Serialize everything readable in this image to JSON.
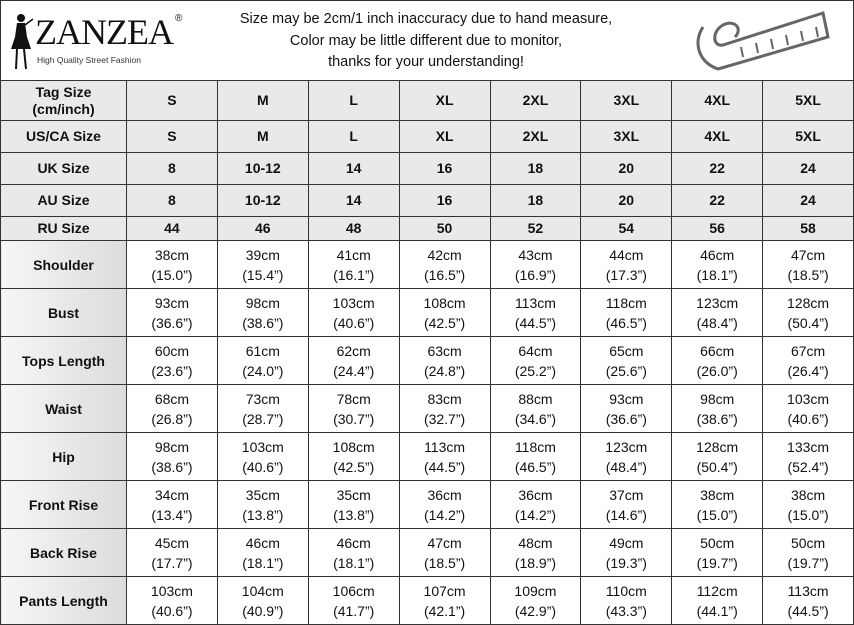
{
  "header": {
    "logo_brand": "ZANZEA",
    "logo_tagline": "High Quality Street Fashion",
    "notice_lines": [
      "Size may be 2cm/1 inch inaccuracy due to hand measure,",
      "Color may be little different due to monitor,",
      "thanks for your understanding!"
    ],
    "icon": "measuring-tape-icon"
  },
  "size_rows": [
    {
      "label": "Tag Size\n(cm/inch)",
      "values": [
        "S",
        "M",
        "L",
        "XL",
        "2XL",
        "3XL",
        "4XL",
        "5XL"
      ]
    },
    {
      "label": "US/CA Size",
      "values": [
        "S",
        "M",
        "L",
        "XL",
        "2XL",
        "3XL",
        "4XL",
        "5XL"
      ]
    },
    {
      "label": "UK Size",
      "values": [
        "8",
        "10-12",
        "14",
        "16",
        "18",
        "20",
        "22",
        "24"
      ]
    },
    {
      "label": "AU Size",
      "values": [
        "8",
        "10-12",
        "14",
        "16",
        "18",
        "20",
        "22",
        "24"
      ]
    },
    {
      "label": "RU Size",
      "values": [
        "44",
        "46",
        "48",
        "50",
        "52",
        "54",
        "56",
        "58"
      ]
    }
  ],
  "measure_rows": [
    {
      "label": "Shoulder",
      "cm": [
        "38cm",
        "39cm",
        "41cm",
        "42cm",
        "43cm",
        "44cm",
        "46cm",
        "47cm"
      ],
      "inch": [
        "(15.0”)",
        "(15.4”)",
        "(16.1”)",
        "(16.5”)",
        "(16.9”)",
        "(17.3”)",
        "(18.1”)",
        "(18.5”)"
      ]
    },
    {
      "label": "Bust",
      "cm": [
        "93cm",
        "98cm",
        "103cm",
        "108cm",
        "113cm",
        "118cm",
        "123cm",
        "128cm"
      ],
      "inch": [
        "(36.6”)",
        "(38.6”)",
        "(40.6”)",
        "(42.5”)",
        "(44.5”)",
        "(46.5”)",
        "(48.4”)",
        "(50.4”)"
      ]
    },
    {
      "label": "Tops Length",
      "cm": [
        "60cm",
        "61cm",
        "62cm",
        "63cm",
        "64cm",
        "65cm",
        "66cm",
        "67cm"
      ],
      "inch": [
        "(23.6”)",
        "(24.0”)",
        "(24.4”)",
        "(24.8”)",
        "(25.2”)",
        "(25.6”)",
        "(26.0”)",
        "(26.4”)"
      ]
    },
    {
      "label": "Waist",
      "cm": [
        "68cm",
        "73cm",
        "78cm",
        "83cm",
        "88cm",
        "93cm",
        "98cm",
        "103cm"
      ],
      "inch": [
        "(26.8”)",
        "(28.7”)",
        "(30.7”)",
        "(32.7”)",
        "(34.6”)",
        "(36.6”)",
        "(38.6”)",
        "(40.6”)"
      ]
    },
    {
      "label": "Hip",
      "cm": [
        "98cm",
        "103cm",
        "108cm",
        "113cm",
        "118cm",
        "123cm",
        "128cm",
        "133cm"
      ],
      "inch": [
        "(38.6”)",
        "(40.6”)",
        "(42.5”)",
        "(44.5”)",
        "(46.5”)",
        "(48.4”)",
        "(50.4”)",
        "(52.4”)"
      ]
    },
    {
      "label": "Front Rise",
      "cm": [
        "34cm",
        "35cm",
        "35cm",
        "36cm",
        "36cm",
        "37cm",
        "38cm",
        "38cm"
      ],
      "inch": [
        "(13.4”)",
        "(13.8”)",
        "(13.8”)",
        "(14.2”)",
        "(14.2”)",
        "(14.6”)",
        "(15.0”)",
        "(15.0”)"
      ]
    },
    {
      "label": "Back Rise",
      "cm": [
        "45cm",
        "46cm",
        "46cm",
        "47cm",
        "48cm",
        "49cm",
        "50cm",
        "50cm"
      ],
      "inch": [
        "(17.7”)",
        "(18.1”)",
        "(18.1”)",
        "(18.5”)",
        "(18.9”)",
        "(19.3”)",
        "(19.7”)",
        "(19.7”)"
      ]
    },
    {
      "label": "Pants Length",
      "cm": [
        "103cm",
        "104cm",
        "106cm",
        "107cm",
        "109cm",
        "110cm",
        "112cm",
        "113cm"
      ],
      "inch": [
        "(40.6”)",
        "(40.9”)",
        "(41.7”)",
        "(42.1”)",
        "(42.9”)",
        "(43.3”)",
        "(44.1”)",
        "(44.5”)"
      ]
    }
  ]
}
